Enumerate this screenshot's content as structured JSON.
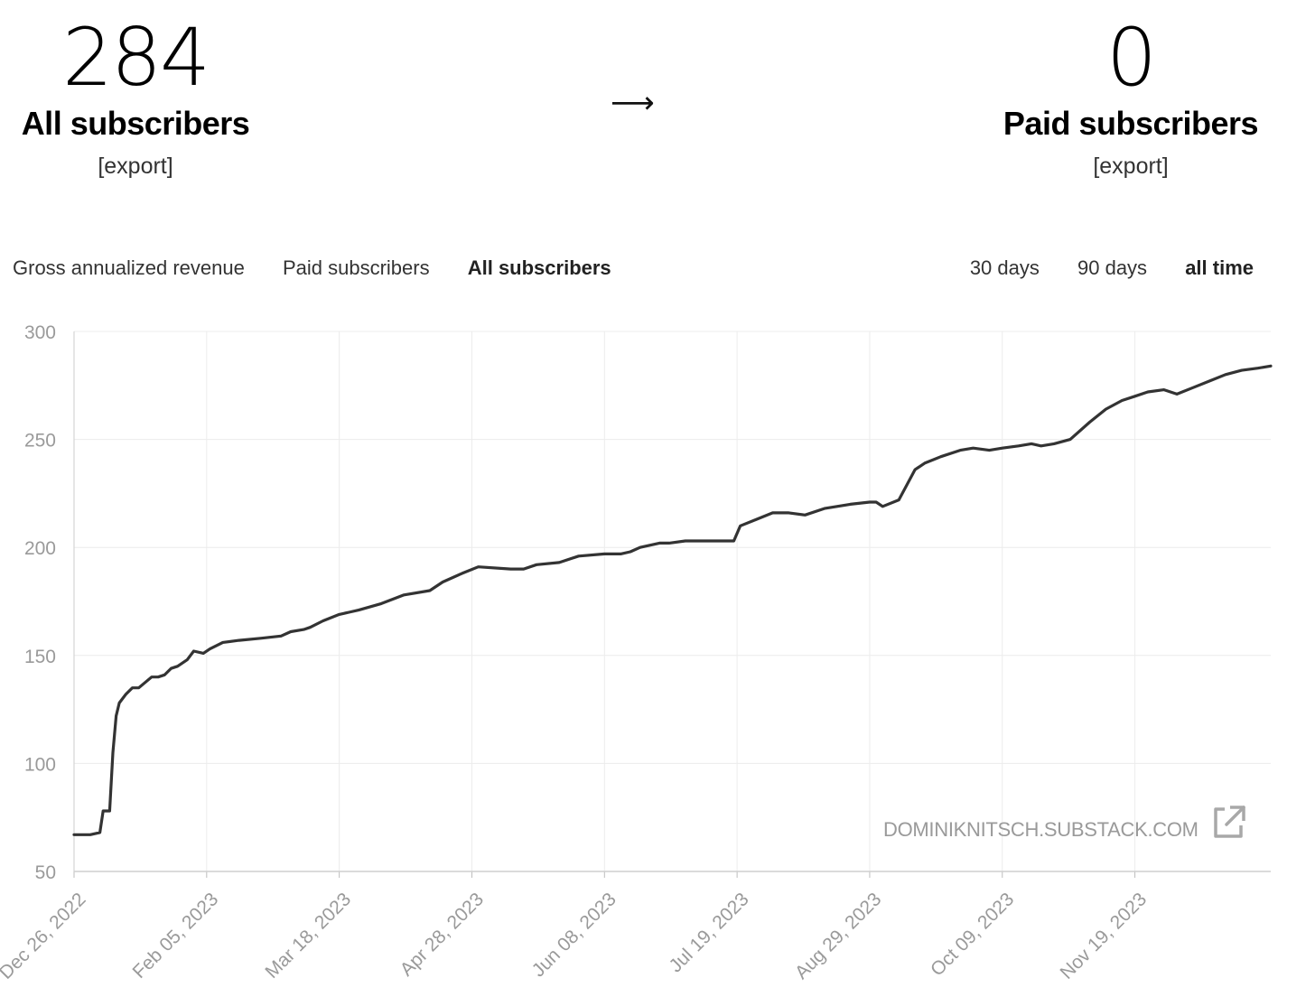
{
  "summary": {
    "all": {
      "value": "284",
      "label": "All subscribers",
      "export": "[export]"
    },
    "arrow": "⟶",
    "paid": {
      "value": "0",
      "label": "Paid subscribers",
      "export": "[export]"
    }
  },
  "metric_tabs": [
    {
      "label": "Gross annualized revenue",
      "active": false
    },
    {
      "label": "Paid subscribers",
      "active": false
    },
    {
      "label": "All subscribers",
      "active": true
    }
  ],
  "range_tabs": [
    {
      "label": "30 days",
      "active": false
    },
    {
      "label": "90 days",
      "active": false
    },
    {
      "label": "all time",
      "active": true
    }
  ],
  "watermark": "DOMINIKNITSCH.SUBSTACK.COM",
  "external_link_icon": "external-link-icon",
  "colors": {
    "line": "#333333",
    "grid": "#ececec",
    "tick_text": "#9a9a9a"
  },
  "chart_data": {
    "type": "line",
    "title": "",
    "xlabel": "",
    "ylabel": "",
    "ylim": [
      50,
      300
    ],
    "yticks": [
      50,
      100,
      150,
      200,
      250,
      300
    ],
    "xlim": [
      "2022-12-26",
      "2023-12-31"
    ],
    "xticks": [
      {
        "date": "2022-12-26",
        "label": "Dec 26, 2022"
      },
      {
        "date": "2023-02-05",
        "label": "Feb 05, 2023"
      },
      {
        "date": "2023-03-18",
        "label": "Mar 18, 2023"
      },
      {
        "date": "2023-04-28",
        "label": "Apr 28, 2023"
      },
      {
        "date": "2023-06-08",
        "label": "Jun 08, 2023"
      },
      {
        "date": "2023-07-19",
        "label": "Jul 19, 2023"
      },
      {
        "date": "2023-08-29",
        "label": "Aug 29, 2023"
      },
      {
        "date": "2023-10-09",
        "label": "Oct 09, 2023"
      },
      {
        "date": "2023-11-19",
        "label": "Nov 19, 2023"
      }
    ],
    "grid": true,
    "series": [
      {
        "x": [
          "2022-12-26",
          "2022-12-31",
          "2023-01-03",
          "2023-01-04",
          "2023-01-06",
          "2023-01-07",
          "2023-01-08",
          "2023-01-09",
          "2023-01-11",
          "2023-01-13",
          "2023-01-15",
          "2023-01-19",
          "2023-01-21",
          "2023-01-23",
          "2023-01-25",
          "2023-01-27",
          "2023-01-30",
          "2023-02-01",
          "2023-02-04",
          "2023-02-06",
          "2023-02-10",
          "2023-02-15",
          "2023-02-22",
          "2023-02-28",
          "2023-03-03",
          "2023-03-07",
          "2023-03-09",
          "2023-03-13",
          "2023-03-18",
          "2023-03-21",
          "2023-03-24",
          "2023-03-31",
          "2023-04-07",
          "2023-04-15",
          "2023-04-19",
          "2023-04-25",
          "2023-04-30",
          "2023-05-10",
          "2023-05-14",
          "2023-05-18",
          "2023-05-25",
          "2023-05-31",
          "2023-06-08",
          "2023-06-13",
          "2023-06-16",
          "2023-06-19",
          "2023-06-25",
          "2023-06-28",
          "2023-07-03",
          "2023-07-09",
          "2023-07-18",
          "2023-07-20",
          "2023-07-25",
          "2023-07-30",
          "2023-08-04",
          "2023-08-09",
          "2023-08-15",
          "2023-08-23",
          "2023-08-29",
          "2023-08-31",
          "2023-09-02",
          "2023-09-07",
          "2023-09-12",
          "2023-09-15",
          "2023-09-20",
          "2023-09-26",
          "2023-09-30",
          "2023-10-05",
          "2023-10-09",
          "2023-10-14",
          "2023-10-18",
          "2023-10-21",
          "2023-10-25",
          "2023-10-30",
          "2023-11-05",
          "2023-11-10",
          "2023-11-15",
          "2023-11-19",
          "2023-11-23",
          "2023-11-28",
          "2023-12-02",
          "2023-12-07",
          "2023-12-12",
          "2023-12-17",
          "2023-12-22",
          "2023-12-27",
          "2023-12-31"
        ],
        "y": [
          67,
          67,
          68,
          78,
          78,
          105,
          122,
          128,
          132,
          135,
          135,
          140,
          140,
          141,
          144,
          145,
          148,
          152,
          151,
          153,
          156,
          157,
          158,
          159,
          161,
          162,
          163,
          166,
          169,
          170,
          171,
          174,
          178,
          180,
          184,
          188,
          191,
          190,
          190,
          192,
          193,
          196,
          197,
          197,
          198,
          200,
          202,
          202,
          203,
          203,
          203,
          210,
          213,
          216,
          216,
          215,
          218,
          220,
          221,
          221,
          219,
          222,
          236,
          239,
          242,
          245,
          246,
          245,
          246,
          247,
          248,
          247,
          248,
          250,
          258,
          264,
          268,
          270,
          272,
          273,
          271,
          274,
          277,
          280,
          282,
          283,
          284
        ]
      }
    ]
  }
}
